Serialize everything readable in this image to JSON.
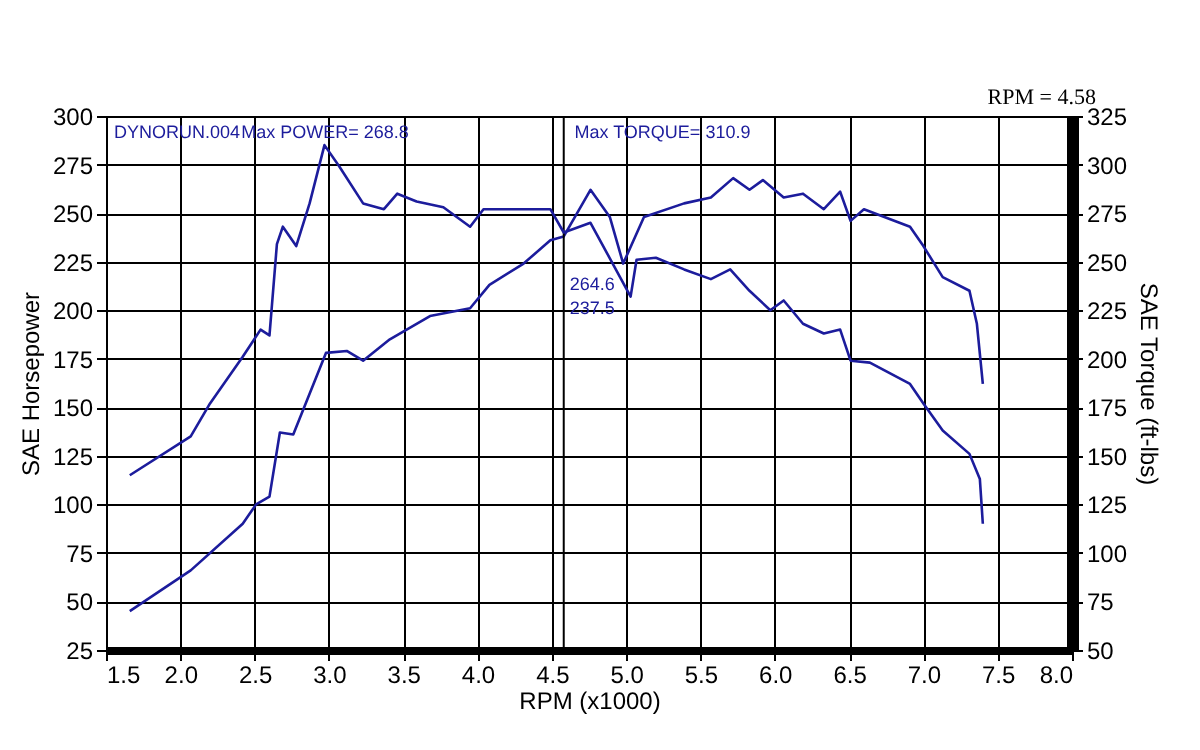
{
  "chart_data": {
    "type": "line",
    "xlabel": "RPM (x1000)",
    "ylabel": "SAE Horsepower",
    "y2label": "SAE Torque (ft-lbs)",
    "annotations": [
      "DYNORUN.004",
      "Max POWER= 268.8",
      "Max TORQUE= 310.9",
      "RPM = 4.58",
      "264.6",
      "237.5"
    ],
    "series": [
      {
        "color": "#1c1c9c",
        "x": [
          1.66,
          2.07,
          2.42,
          2.51,
          2.6,
          2.67,
          2.76,
          2.98,
          3.12,
          3.23,
          3.41,
          3.68,
          3.95,
          4.08,
          4.31,
          4.49,
          4.58,
          4.76,
          4.89,
          4.98,
          5.12,
          5.39,
          5.57,
          5.72,
          5.83,
          5.92,
          6.06,
          6.19,
          6.33,
          6.44,
          6.51,
          6.6,
          6.91,
          7.0,
          7.13,
          7.31,
          7.36,
          7.4
        ],
        "values": [
          45,
          66,
          90,
          100,
          104,
          137,
          136,
          178,
          179,
          174,
          185,
          197,
          201,
          213,
          224,
          236,
          238,
          262,
          248,
          224,
          248,
          255,
          258,
          268,
          262,
          267,
          258,
          260,
          252,
          261,
          246,
          252,
          243,
          233,
          217,
          210,
          193,
          162
        ]
      },
      {
        "color": "#1c1c9c",
        "axis": "y2",
        "x": [
          1.66,
          2.07,
          2.2,
          2.42,
          2.54,
          2.6,
          2.65,
          2.69,
          2.78,
          2.87,
          2.97,
          3.07,
          3.23,
          3.37,
          3.46,
          3.59,
          3.77,
          3.95,
          4.04,
          4.26,
          4.49,
          4.58,
          4.76,
          5.03,
          5.07,
          5.2,
          5.39,
          5.57,
          5.7,
          5.83,
          5.97,
          6.06,
          6.19,
          6.33,
          6.44,
          6.51,
          6.64,
          6.91,
          7.0,
          7.13,
          7.31,
          7.38,
          7.4
        ],
        "values": [
          140,
          160,
          177,
          201,
          215,
          212,
          259,
          268,
          258,
          280,
          310,
          299,
          280,
          277,
          285,
          281,
          278,
          268,
          277,
          277,
          277,
          265,
          270,
          232,
          251,
          252,
          246,
          241,
          246,
          235,
          225,
          230,
          218,
          213,
          215,
          199,
          198,
          187,
          177,
          163,
          151,
          138,
          115
        ]
      }
    ],
    "xlim": [
      1.5,
      8.0
    ],
    "xticks": [
      {
        "value": 1.5,
        "label": "1.5"
      },
      {
        "value": 2,
        "label": "2.0"
      },
      {
        "value": 2.5,
        "label": "2.5"
      },
      {
        "value": 3,
        "label": "3.0"
      },
      {
        "value": 3.5,
        "label": "3.5"
      },
      {
        "value": 4,
        "label": "4.0"
      },
      {
        "value": 4.5,
        "label": "4.5"
      },
      {
        "value": 5,
        "label": "5.0"
      },
      {
        "value": 5.5,
        "label": "5.5"
      },
      {
        "value": 6,
        "label": "6.0"
      },
      {
        "value": 6.5,
        "label": "6.5"
      },
      {
        "value": 7,
        "label": "7.0"
      },
      {
        "value": 7.5,
        "label": "7.5"
      },
      {
        "value": 8,
        "label": "8.0"
      }
    ],
    "ylim": [
      25,
      300
    ],
    "yticks": [
      25,
      50,
      75,
      100,
      125,
      150,
      175,
      200,
      225,
      250,
      275,
      300
    ],
    "y2lim": [
      50,
      325
    ],
    "y2ticks": [
      50,
      75,
      100,
      125,
      150,
      175,
      200,
      225,
      250,
      275,
      300,
      325
    ],
    "ref_lines": [
      {
        "axis": "x",
        "value": 4.58,
        "color": "#000000"
      }
    ],
    "grid": true,
    "marker": "none",
    "line_style": "solid"
  }
}
